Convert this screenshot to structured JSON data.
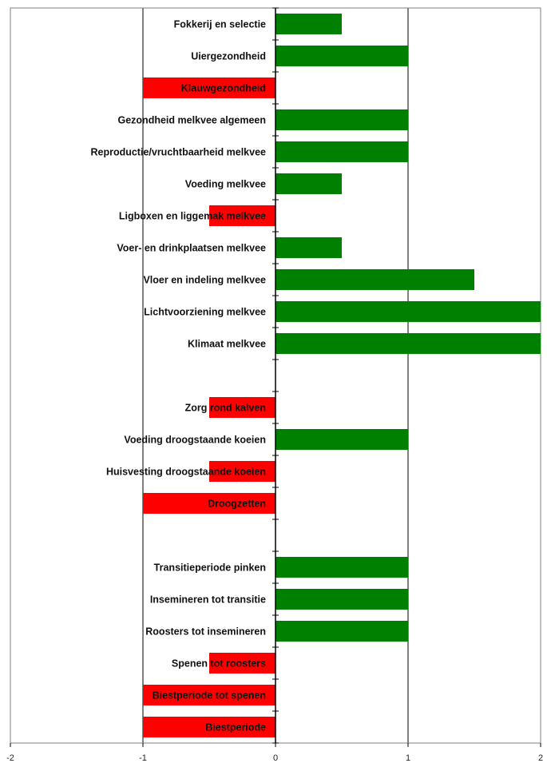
{
  "chart_data": {
    "type": "bar",
    "orientation": "horizontal",
    "title": "",
    "xlabel": "",
    "ylabel": "",
    "xlim": [
      -2,
      2
    ],
    "x_ticks": [
      -2,
      -1,
      0,
      1,
      2
    ],
    "x_tick_labels": [
      "-2",
      "-1",
      "0",
      "1",
      "2"
    ],
    "grid": "vertical",
    "legend": "none",
    "colors": {
      "positive": "#008000",
      "negative": "#ff0000",
      "gridline": "#808080",
      "axis": "#000000"
    },
    "categories": [
      "Fokkerij en selectie",
      "Uiergezondheid",
      "Klauwgezondheid",
      "Gezondheid melkvee algemeen",
      "Reproductie/vruchtbaarheid melkvee",
      "Voeding melkvee",
      "Ligboxen en liggemak melkvee",
      "Voer- en drinkplaatsen melkvee",
      "Vloer en indeling melkvee",
      "Lichtvoorziening melkvee",
      "Klimaat melkvee",
      "",
      "Zorg rond kalven",
      "Voeding droogstaande koeien",
      "Huisvesting droogstaande koeien",
      "Droogzetten",
      "",
      "Transitieperiode pinken",
      "Insemineren tot transitie",
      "Roosters tot insemineren",
      "Spenen tot roosters",
      "Biestperiode tot spenen",
      "Biestperiode"
    ],
    "values": [
      0.5,
      1,
      -1,
      1,
      1,
      0.5,
      -0.5,
      0.5,
      1.5,
      2,
      2,
      null,
      -0.5,
      1,
      -0.5,
      -1,
      null,
      1,
      1,
      1,
      -0.5,
      -1,
      -1
    ]
  }
}
